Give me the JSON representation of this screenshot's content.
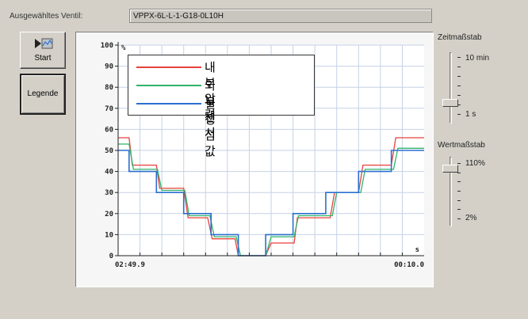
{
  "valve": {
    "label": "Ausgewähltes Ventil:",
    "value": "VPPX-6L-L-1-G18-0L10H"
  },
  "buttons": {
    "start_label": "Start",
    "start_icon": "play-record-icon",
    "legend_label": "Legende"
  },
  "time_scale": {
    "title": "Zeitmaßstab",
    "max_label": "10 min",
    "min_label": "1 s",
    "level": 0.2
  },
  "value_scale": {
    "title": "Wertmaßstab",
    "max_label": "110%",
    "min_label": "2%",
    "level": 0.9
  },
  "chart_data": {
    "type": "line",
    "y_unit": "%",
    "x_unit": "s",
    "ylim": [
      0,
      100
    ],
    "yticks": [
      0,
      10,
      20,
      30,
      40,
      50,
      60,
      70,
      80,
      90,
      100
    ],
    "xlim": [
      0,
      28
    ],
    "x_start_label": "02:49.9",
    "x_end_label": "00:10.0",
    "grid": true,
    "legend_placement": "top-left",
    "series": [
      {
        "name": "내부 압력",
        "color": "#e8413c",
        "points": [
          [
            0,
            56
          ],
          [
            1,
            56
          ],
          [
            1.3,
            43
          ],
          [
            3.5,
            43
          ],
          [
            3.8,
            32
          ],
          [
            6,
            32
          ],
          [
            6.4,
            18
          ],
          [
            8.2,
            18
          ],
          [
            8.6,
            8
          ],
          [
            10.7,
            8
          ],
          [
            11,
            0
          ],
          [
            13.5,
            0
          ],
          [
            14,
            6
          ],
          [
            16.1,
            6
          ],
          [
            16.4,
            18
          ],
          [
            19.4,
            18
          ],
          [
            19.8,
            30
          ],
          [
            22,
            30
          ],
          [
            22.4,
            43
          ],
          [
            25,
            43
          ],
          [
            25.4,
            56
          ],
          [
            28,
            56
          ]
        ]
      },
      {
        "name": "외부 센서",
        "color": "#2fb36a",
        "points": [
          [
            0,
            53
          ],
          [
            1,
            53
          ],
          [
            1.4,
            41
          ],
          [
            3.6,
            41
          ],
          [
            4,
            31
          ],
          [
            6.1,
            31
          ],
          [
            6.5,
            19
          ],
          [
            8.4,
            19
          ],
          [
            8.8,
            9
          ],
          [
            10.8,
            9
          ],
          [
            11.2,
            0
          ],
          [
            13.5,
            0
          ],
          [
            14,
            9
          ],
          [
            16.1,
            9
          ],
          [
            16.5,
            19
          ],
          [
            19.6,
            19
          ],
          [
            20,
            30
          ],
          [
            22.2,
            30
          ],
          [
            22.6,
            41
          ],
          [
            25.2,
            41
          ],
          [
            25.6,
            51
          ],
          [
            28,
            51
          ]
        ]
      },
      {
        "name": "설정점 값",
        "color": "#2a6fd0",
        "points": [
          [
            0,
            50
          ],
          [
            1,
            50
          ],
          [
            1,
            40
          ],
          [
            3.5,
            40
          ],
          [
            3.5,
            30
          ],
          [
            6,
            30
          ],
          [
            6,
            20
          ],
          [
            8.5,
            20
          ],
          [
            8.5,
            10
          ],
          [
            11,
            10
          ],
          [
            11,
            0
          ],
          [
            13.5,
            0
          ],
          [
            13.5,
            10
          ],
          [
            16,
            10
          ],
          [
            16,
            20
          ],
          [
            19,
            20
          ],
          [
            19,
            30
          ],
          [
            22,
            30
          ],
          [
            22,
            40
          ],
          [
            25,
            40
          ],
          [
            25,
            50
          ],
          [
            28,
            50
          ]
        ]
      }
    ]
  }
}
